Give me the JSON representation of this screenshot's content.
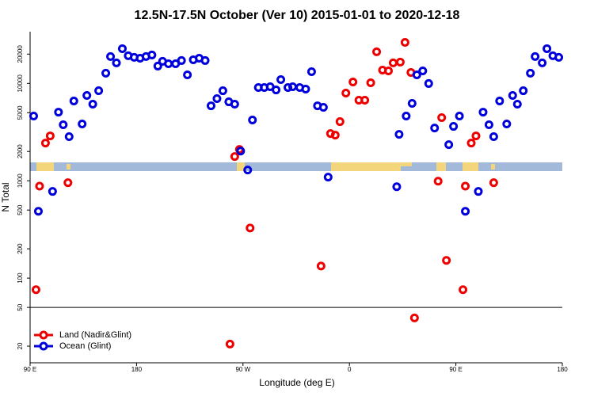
{
  "chart_data": {
    "type": "scatter",
    "title": "12.5N-17.5N October (Ver 10)   2015-01-01 to 2020-12-18",
    "x_label": "Longitude (deg E)",
    "y_label": "N Total",
    "log_y": true,
    "legend": "bottom-left",
    "reference_line": 50,
    "xlim": [
      90,
      540
    ],
    "xticks": [
      {
        "value": 90,
        "label": "90 E"
      },
      180,
      {
        "value": 270,
        "label": "90 W"
      },
      {
        "value": 360,
        "label": "0"
      },
      {
        "value": 450,
        "label": "90 E"
      },
      {
        "value": 540,
        "label": "180"
      }
    ],
    "ylim": [
      13.5,
      34000
    ],
    "yticks": [
      20,
      50,
      100,
      200,
      500,
      1000,
      2000,
      5000,
      10000,
      20000
    ],
    "series": [
      {
        "name": "Land (Nadir&Glint)",
        "color": "#ee0000",
        "x": [
          95,
          98,
          103,
          107,
          122,
          263,
          267,
          276,
          259,
          336,
          344,
          348,
          352,
          357,
          363,
          368,
          373,
          378,
          383,
          388,
          393,
          397,
          403,
          407,
          412,
          415,
          435,
          438,
          442,
          456,
          458,
          463,
          467,
          482
        ],
        "values": [
          76,
          880,
          2440,
          2890,
          955,
          1775,
          2100,
          327,
          21,
          133,
          3055,
          2945,
          4050,
          7960,
          10350,
          6720,
          6720,
          10160,
          21130,
          13700,
          13460,
          16250,
          16550,
          26420,
          12970,
          39,
          990,
          4450,
          152,
          76,
          880,
          2440,
          2890,
          955
        ]
      },
      {
        "name": "Ocean (Glint)",
        "color": "#0000dd",
        "x": [
          93,
          97,
          109,
          114,
          118,
          123,
          127,
          134,
          138,
          143,
          148,
          154,
          158,
          163,
          168,
          173,
          178,
          183,
          188,
          193,
          198,
          202,
          207,
          213,
          218,
          223,
          228,
          233,
          238,
          243,
          248,
          253,
          258,
          263,
          268,
          274,
          278,
          283,
          288,
          293,
          298,
          302,
          308,
          312,
          318,
          323,
          328,
          333,
          338,
          342,
          400,
          402,
          408,
          413,
          417,
          422,
          427,
          432,
          444,
          448,
          453,
          458,
          469,
          473,
          478,
          482,
          487,
          493,
          498,
          502,
          507,
          513,
          517,
          523,
          527,
          532,
          537
        ],
        "values": [
          4620,
          486,
          777,
          5070,
          3760,
          2840,
          6600,
          3830,
          7520,
          6120,
          8410,
          12740,
          18880,
          16250,
          22750,
          19230,
          18530,
          18160,
          18880,
          19590,
          15070,
          16870,
          15920,
          15920,
          17180,
          12250,
          17500,
          18160,
          17180,
          5890,
          6980,
          8410,
          6470,
          6120,
          2020,
          1290,
          4210,
          9080,
          9080,
          9250,
          8570,
          10940,
          9080,
          9250,
          9080,
          8750,
          13210,
          5890,
          5680,
          1090,
          869,
          3000,
          4620,
          6240,
          12250,
          13460,
          9980,
          3480,
          2350,
          3620,
          4620,
          486,
          777,
          5070,
          3760,
          2840,
          6600,
          3830,
          7520,
          6120,
          8410,
          12740,
          18880,
          16250,
          22750,
          19230,
          18530
        ]
      }
    ]
  }
}
